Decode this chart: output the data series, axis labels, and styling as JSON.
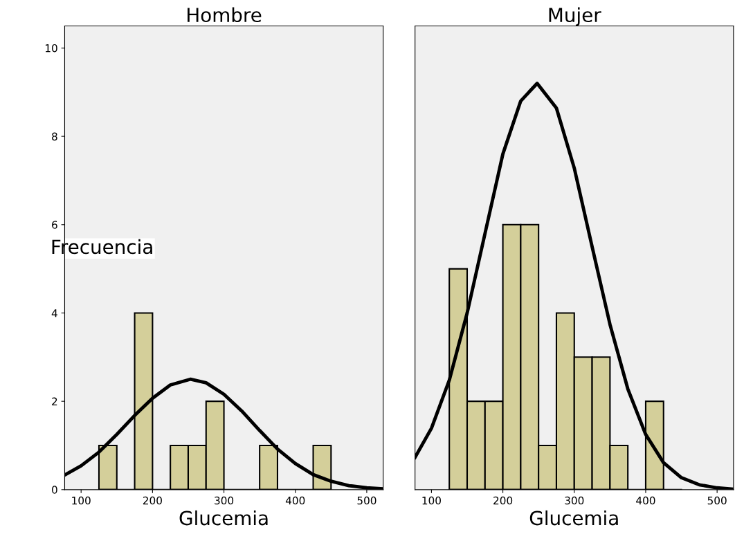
{
  "chart_data": [
    {
      "type": "histogram",
      "title": "Hombre",
      "xlabel": "Glucemia",
      "ylabel": "Frecuencia",
      "bins": [
        125,
        150,
        175,
        200,
        225,
        250,
        275,
        300,
        325,
        350,
        375,
        400,
        425,
        450
      ],
      "values": [
        1,
        0,
        4,
        0,
        1,
        1,
        2,
        0,
        0,
        1,
        0,
        0,
        1
      ],
      "color": "#d4cf9a",
      "xlim": [
        77,
        523
      ],
      "xticks": [
        100,
        200,
        300,
        400,
        500
      ],
      "ylim": [
        0,
        10.5
      ],
      "yticks": [
        0,
        2,
        4,
        6,
        8,
        10
      ],
      "grid": false,
      "legend": false,
      "series": [
        {
          "type": "line",
          "color": "#000000",
          "x": [
            77,
            100,
            125,
            150,
            175,
            200,
            225,
            253,
            275,
            300,
            325,
            350,
            375,
            400,
            425,
            450,
            475,
            500,
            523
          ],
          "values": [
            0.33,
            0.54,
            0.85,
            1.25,
            1.68,
            2.07,
            2.37,
            2.5,
            2.42,
            2.16,
            1.78,
            1.34,
            0.92,
            0.59,
            0.34,
            0.19,
            0.09,
            0.04,
            0.02
          ]
        }
      ]
    },
    {
      "type": "histogram",
      "title": "Mujer",
      "xlabel": "Glucemia",
      "bins": [
        125,
        150,
        175,
        200,
        225,
        250,
        275,
        300,
        325,
        350,
        375,
        400,
        425,
        450
      ],
      "values": [
        5,
        2,
        2,
        6,
        6,
        1,
        4,
        3,
        3,
        1,
        0,
        2,
        0
      ],
      "color": "#d4cf9a",
      "xlim": [
        77,
        523
      ],
      "xticks": [
        100,
        200,
        300,
        400,
        500
      ],
      "ylim": [
        0,
        10.5
      ],
      "yticks": [
        0,
        2,
        4,
        6,
        8,
        10
      ],
      "tick_labels": "x",
      "grid": false,
      "legend": false,
      "series": [
        {
          "type": "line",
          "color": "#000000",
          "x": [
            77,
            100,
            125,
            150,
            175,
            200,
            225,
            248,
            275,
            300,
            325,
            350,
            375,
            400,
            425,
            450,
            475,
            500,
            523
          ],
          "values": [
            0.73,
            1.39,
            2.48,
            4.0,
            5.8,
            7.6,
            8.8,
            9.2,
            8.64,
            7.28,
            5.5,
            3.74,
            2.28,
            1.25,
            0.61,
            0.27,
            0.11,
            0.04,
            0.01
          ]
        }
      ]
    }
  ]
}
